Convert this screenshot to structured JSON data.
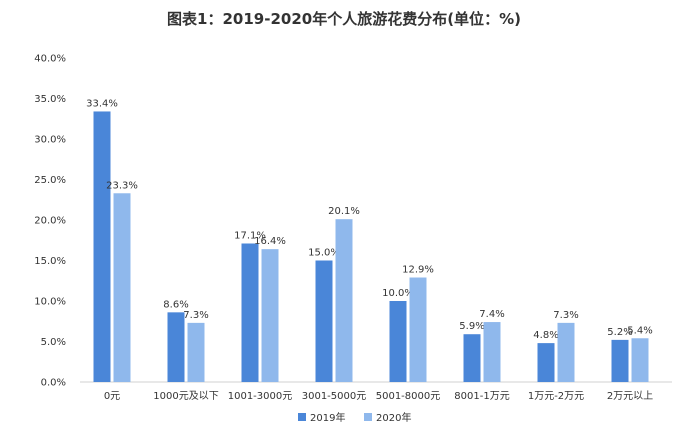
{
  "chart_data": {
    "type": "bar",
    "title": "图表1：2019-2020年个人旅游花费分布(单位：%)",
    "categories": [
      "0元",
      "1000元及以下",
      "1001-3000元",
      "3001-5000元",
      "5001-8000元",
      "8001-1万元",
      "1万元-2万元",
      "2万元以上"
    ],
    "series": [
      {
        "name": "2019年",
        "color": "#4a86d8",
        "values": [
          33.4,
          8.6,
          17.1,
          15.0,
          10.0,
          5.9,
          4.8,
          5.2
        ],
        "labels": [
          "33.4%",
          "8.6%",
          "17.1%",
          "15.0%",
          "10.0%",
          "5.9%",
          "4.8%",
          "5.2%"
        ]
      },
      {
        "name": "2020年",
        "color": "#8fb8ec",
        "values": [
          23.3,
          7.3,
          16.4,
          20.1,
          12.9,
          7.4,
          7.3,
          5.4
        ],
        "labels": [
          "23.3%",
          "7.3%",
          "16.4%",
          "20.1%",
          "12.9%",
          "7.4%",
          "7.3%",
          "5.4%"
        ]
      }
    ],
    "ylim": [
      0,
      40
    ],
    "yticks": [
      "0.0%",
      "5.0%",
      "10.0%",
      "15.0%",
      "20.0%",
      "25.0%",
      "30.0%",
      "35.0%",
      "40.0%"
    ],
    "grid": false,
    "legend": "bottom"
  }
}
